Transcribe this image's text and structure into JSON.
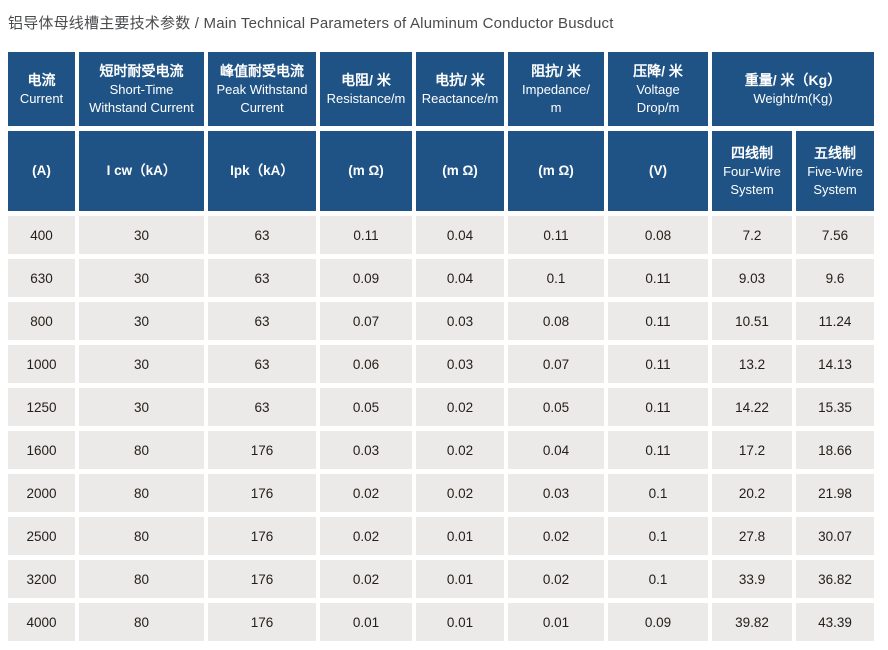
{
  "page": {
    "title": "铝导体母线槽主要技术参数 / Main Technical Parameters of Aluminum Conductor Busduct"
  },
  "colors": {
    "header_bg": "#1f5385",
    "cell_bg": "#eceae8",
    "header_text": "#ffffff",
    "body_text": "#242019",
    "title_text": "#4a4b4d",
    "page_bg": "#ffffff"
  },
  "chart_data": {
    "type": "table",
    "title": "铝导体母线槽主要技术参数 / Main Technical Parameters of Aluminum Conductor Busduct",
    "header_groups": [
      {
        "zh": "电流",
        "en": "Current",
        "span": 1
      },
      {
        "zh": "短时耐受电流",
        "en": "Short-Time\nWithstand Current",
        "span": 1
      },
      {
        "zh": "峰值耐受电流",
        "en": "Peak Withstand\nCurrent",
        "span": 1
      },
      {
        "zh": "电阻/ 米",
        "en": "Resistance/m",
        "span": 1
      },
      {
        "zh": "电抗/ 米",
        "en": "Reactance/m",
        "span": 1
      },
      {
        "zh": "阻抗/ 米",
        "en": "Impedance/\nm",
        "span": 1
      },
      {
        "zh": "压降/ 米",
        "en": "Voltage\nDrop/m",
        "span": 1
      },
      {
        "zh": "重量/ 米（Kg）",
        "en": "Weight/m(Kg)",
        "span": 2
      }
    ],
    "subheaders": [
      {
        "zh": "",
        "label": "(A)"
      },
      {
        "zh": "",
        "label": "I cw（kA）"
      },
      {
        "zh": "",
        "label": "Ipk（kA）"
      },
      {
        "zh": "",
        "label": "(m Ω)"
      },
      {
        "zh": "",
        "label": "(m Ω)"
      },
      {
        "zh": "",
        "label": "(m Ω)"
      },
      {
        "zh": "",
        "label": "(V)"
      },
      {
        "zh": "四线制",
        "label": "Four-Wire\nSystem"
      },
      {
        "zh": "五线制",
        "label": "Five-Wire\nSystem"
      }
    ],
    "rows": [
      [
        "400",
        "30",
        "63",
        "0.11",
        "0.04",
        "0.11",
        "0.08",
        "7.2",
        "7.56"
      ],
      [
        "630",
        "30",
        "63",
        "0.09",
        "0.04",
        "0.1",
        "0.11",
        "9.03",
        "9.6"
      ],
      [
        "800",
        "30",
        "63",
        "0.07",
        "0.03",
        "0.08",
        "0.11",
        "10.51",
        "11.24"
      ],
      [
        "1000",
        "30",
        "63",
        "0.06",
        "0.03",
        "0.07",
        "0.11",
        "13.2",
        "14.13"
      ],
      [
        "1250",
        "30",
        "63",
        "0.05",
        "0.02",
        "0.05",
        "0.11",
        "14.22",
        "15.35"
      ],
      [
        "1600",
        "80",
        "176",
        "0.03",
        "0.02",
        "0.04",
        "0.11",
        "17.2",
        "18.66"
      ],
      [
        "2000",
        "80",
        "176",
        "0.02",
        "0.02",
        "0.03",
        "0.1",
        "20.2",
        "21.98"
      ],
      [
        "2500",
        "80",
        "176",
        "0.02",
        "0.01",
        "0.02",
        "0.1",
        "27.8",
        "30.07"
      ],
      [
        "3200",
        "80",
        "176",
        "0.02",
        "0.01",
        "0.02",
        "0.1",
        "33.9",
        "36.82"
      ],
      [
        "4000",
        "80",
        "176",
        "0.01",
        "0.01",
        "0.01",
        "0.09",
        "39.82",
        "43.39"
      ]
    ]
  }
}
